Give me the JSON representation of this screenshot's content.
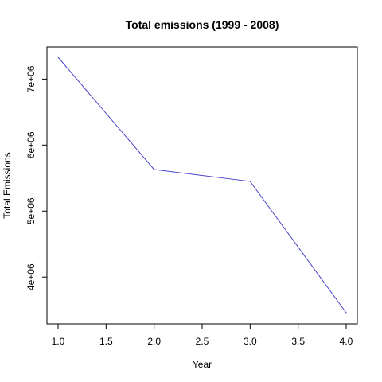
{
  "chart_data": {
    "type": "line",
    "title": "Total emissions (1999 - 2008)",
    "xlabel": "Year",
    "ylabel": "Total Emissions",
    "x": [
      1.0,
      2.0,
      3.0,
      4.0
    ],
    "series": [
      {
        "values": [
          7330000,
          5630000,
          5450000,
          3460000
        ],
        "color": "#4b46c8"
      }
    ],
    "xlim": [
      1.0,
      4.0
    ],
    "ylim": [
      3460000,
      7330000
    ],
    "xticks": [
      1.0,
      1.5,
      2.0,
      2.5,
      3.0,
      3.5,
      4.0
    ],
    "xtick_labels": [
      "1.0",
      "1.5",
      "2.0",
      "2.5",
      "3.0",
      "3.5",
      "4.0"
    ],
    "yticks": [
      4000000,
      5000000,
      6000000,
      7000000
    ],
    "ytick_labels": [
      "4e+06",
      "5e+06",
      "6e+06",
      "7e+06"
    ],
    "grid": false,
    "legend": "none"
  }
}
